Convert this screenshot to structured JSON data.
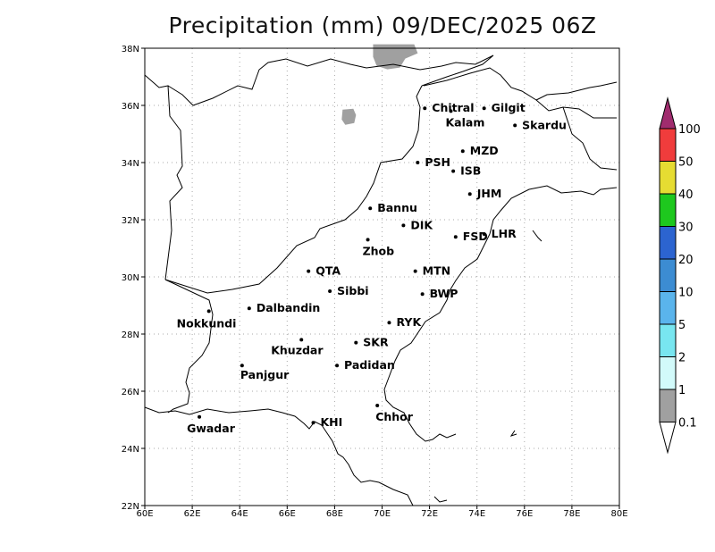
{
  "title": "Precipitation (mm) 09/DEC/2025 06Z",
  "map": {
    "lon_range": [
      60,
      80
    ],
    "lat_range": [
      22,
      38
    ],
    "grid": true,
    "x_ticks": [
      {
        "value": 60,
        "label": "60E"
      },
      {
        "value": 62,
        "label": "62E"
      },
      {
        "value": 64,
        "label": "64E"
      },
      {
        "value": 66,
        "label": "66E"
      },
      {
        "value": 68,
        "label": "68E"
      },
      {
        "value": 70,
        "label": "70E"
      },
      {
        "value": 72,
        "label": "72E"
      },
      {
        "value": 74,
        "label": "74E"
      },
      {
        "value": 76,
        "label": "76E"
      },
      {
        "value": 78,
        "label": "78E"
      },
      {
        "value": 80,
        "label": "80E"
      }
    ],
    "y_ticks": [
      {
        "value": 22,
        "label": "22N"
      },
      {
        "value": 24,
        "label": "24N"
      },
      {
        "value": 26,
        "label": "26N"
      },
      {
        "value": 28,
        "label": "28N"
      },
      {
        "value": 30,
        "label": "30N"
      },
      {
        "value": 32,
        "label": "32N"
      },
      {
        "value": 34,
        "label": "34N"
      },
      {
        "value": 36,
        "label": "36N"
      },
      {
        "value": 38,
        "label": "38N"
      }
    ],
    "precip_areas": [
      {
        "category": "0.1-1",
        "color": "#a0a0a0",
        "lon": 70.6,
        "lat": 37.7
      },
      {
        "category": "0.1-1",
        "color": "#a0a0a0",
        "lon": 68.6,
        "lat": 35.6
      }
    ],
    "stations": [
      {
        "name": "Chitral",
        "lon": 71.8,
        "lat": 35.9
      },
      {
        "name": "Kalam",
        "lon": 72.9,
        "lat": 35.8
      },
      {
        "name": "Gilgit",
        "lon": 74.3,
        "lat": 35.9
      },
      {
        "name": "Skardu",
        "lon": 75.6,
        "lat": 35.3
      },
      {
        "name": "MZD",
        "lon": 73.4,
        "lat": 34.4
      },
      {
        "name": "PSH",
        "lon": 71.5,
        "lat": 34.0
      },
      {
        "name": "ISB",
        "lon": 73.0,
        "lat": 33.7
      },
      {
        "name": "JHM",
        "lon": 73.7,
        "lat": 32.9
      },
      {
        "name": "Bannu",
        "lon": 69.5,
        "lat": 32.4
      },
      {
        "name": "DIK",
        "lon": 70.9,
        "lat": 31.8
      },
      {
        "name": "FSD",
        "lon": 73.1,
        "lat": 31.4
      },
      {
        "name": "LHR",
        "lon": 74.3,
        "lat": 31.5
      },
      {
        "name": "Zhob",
        "lon": 69.4,
        "lat": 31.3
      },
      {
        "name": "QTA",
        "lon": 66.9,
        "lat": 30.2
      },
      {
        "name": "MTN",
        "lon": 71.4,
        "lat": 30.2
      },
      {
        "name": "Sibbi",
        "lon": 67.8,
        "lat": 29.5
      },
      {
        "name": "BWP",
        "lon": 71.7,
        "lat": 29.4
      },
      {
        "name": "Dalbandin",
        "lon": 64.4,
        "lat": 28.9
      },
      {
        "name": "Nokkundi",
        "lon": 62.7,
        "lat": 28.8
      },
      {
        "name": "RYK",
        "lon": 70.3,
        "lat": 28.4
      },
      {
        "name": "Khuzdar",
        "lon": 66.6,
        "lat": 27.8
      },
      {
        "name": "SKR",
        "lon": 68.9,
        "lat": 27.7
      },
      {
        "name": "Panjgur",
        "lon": 64.1,
        "lat": 26.9
      },
      {
        "name": "Padidan",
        "lon": 68.1,
        "lat": 26.9
      },
      {
        "name": "Chhor",
        "lon": 69.8,
        "lat": 25.5
      },
      {
        "name": "KHI",
        "lon": 67.1,
        "lat": 24.9
      },
      {
        "name": "Gwadar",
        "lon": 62.3,
        "lat": 25.1
      }
    ]
  },
  "legend": {
    "levels": [
      "0.1",
      "1",
      "2",
      "5",
      "10",
      "20",
      "30",
      "40",
      "50",
      "100"
    ],
    "colors": [
      "#a0a0a0",
      "#d2fafa",
      "#78e6f0",
      "#5ab4ec",
      "#3c8cd2",
      "#2c64d0",
      "#1ec81e",
      "#e6dc32",
      "#f03c3c",
      "#a02c6e"
    ],
    "low_color": "#ffffff"
  }
}
